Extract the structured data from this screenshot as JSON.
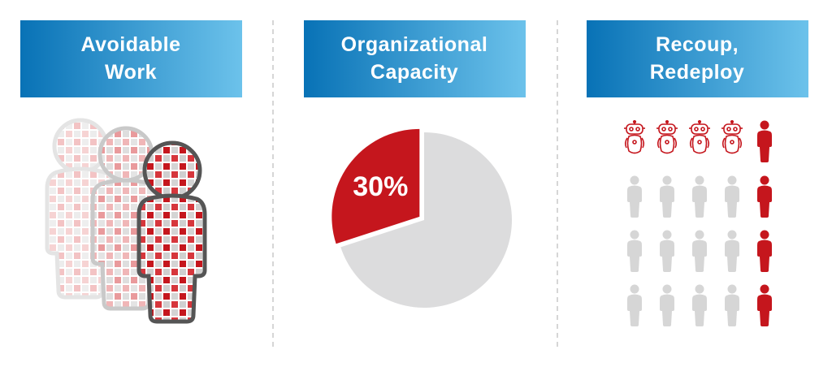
{
  "panels": [
    {
      "title": [
        "Avoidable",
        "Work"
      ]
    },
    {
      "title": [
        "Organizational",
        "Capacity"
      ],
      "pie": {
        "values": [
          30
        ],
        "value_labels": [
          "30%"
        ],
        "color": "#c5161d",
        "rest_color": "#dcdcdd"
      }
    },
    {
      "title": [
        "Recoup,",
        "Redeploy"
      ]
    }
  ]
}
